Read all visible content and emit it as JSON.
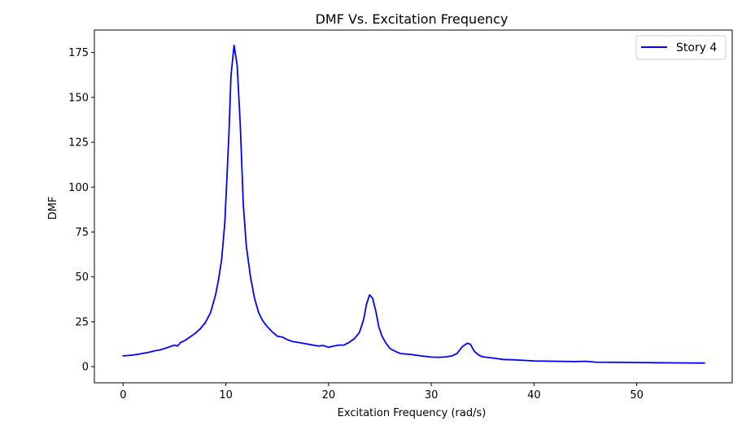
{
  "chart_data": {
    "type": "line",
    "title": "DMF Vs. Excitation Frequency",
    "xlabel": "Excitation Frequency (rad/s)",
    "ylabel": "DMF",
    "xlim": [
      -2.8,
      59.3
    ],
    "ylim": [
      -9,
      187.5
    ],
    "xticks": [
      0,
      10,
      20,
      30,
      40,
      50
    ],
    "yticks": [
      0,
      25,
      50,
      75,
      100,
      125,
      150,
      175
    ],
    "grid": false,
    "legend_position": "top-right",
    "series": [
      {
        "name": "Story 4",
        "color": "#0000ff",
        "x": [
          0,
          0.5,
          1,
          1.5,
          2,
          2.5,
          3,
          3.5,
          4,
          4.5,
          5,
          5.3,
          5.6,
          6,
          6.5,
          7,
          7.5,
          8,
          8.5,
          9,
          9.3,
          9.6,
          9.9,
          10.1,
          10.3,
          10.5,
          10.8,
          11.1,
          11.4,
          11.7,
          12,
          12.4,
          12.8,
          13.2,
          13.6,
          14,
          14.5,
          15,
          15.5,
          16,
          16.5,
          17,
          18,
          19,
          19.5,
          20,
          20.5,
          21,
          21.5,
          22,
          22.5,
          23,
          23.4,
          23.7,
          24,
          24.3,
          24.6,
          24.9,
          25.2,
          25.6,
          26,
          26.5,
          27,
          28,
          29,
          30,
          30.8,
          31.5,
          32,
          32.5,
          33,
          33.5,
          33.8,
          34.2,
          34.6,
          35,
          36,
          37,
          38,
          39,
          40,
          42,
          44,
          45,
          46,
          48,
          50,
          52,
          54,
          56,
          56.6
        ],
        "values": [
          6,
          6.2,
          6.5,
          7,
          7.5,
          8,
          8.7,
          9.2,
          10,
          11,
          12,
          11.5,
          13.5,
          14.5,
          16.5,
          18.5,
          21,
          24.5,
          30,
          40,
          49,
          60,
          80,
          105,
          130,
          162,
          179,
          168,
          135,
          90,
          67,
          50,
          38,
          30,
          25.5,
          22.5,
          19.5,
          17,
          16.5,
          15,
          14,
          13.5,
          12.5,
          11.5,
          11.8,
          10.8,
          11.5,
          12,
          12,
          13.5,
          15.5,
          19,
          26,
          35,
          40,
          38,
          31,
          22,
          17,
          13,
          10,
          8.5,
          7.3,
          6.8,
          6,
          5.3,
          5.2,
          5.5,
          6,
          7.3,
          11,
          13,
          12.5,
          8.5,
          6.5,
          5.5,
          4.8,
          4,
          3.8,
          3.5,
          3.2,
          3,
          2.8,
          3,
          2.5,
          2.4,
          2.3,
          2.2,
          2.1,
          2,
          2
        ]
      }
    ]
  }
}
